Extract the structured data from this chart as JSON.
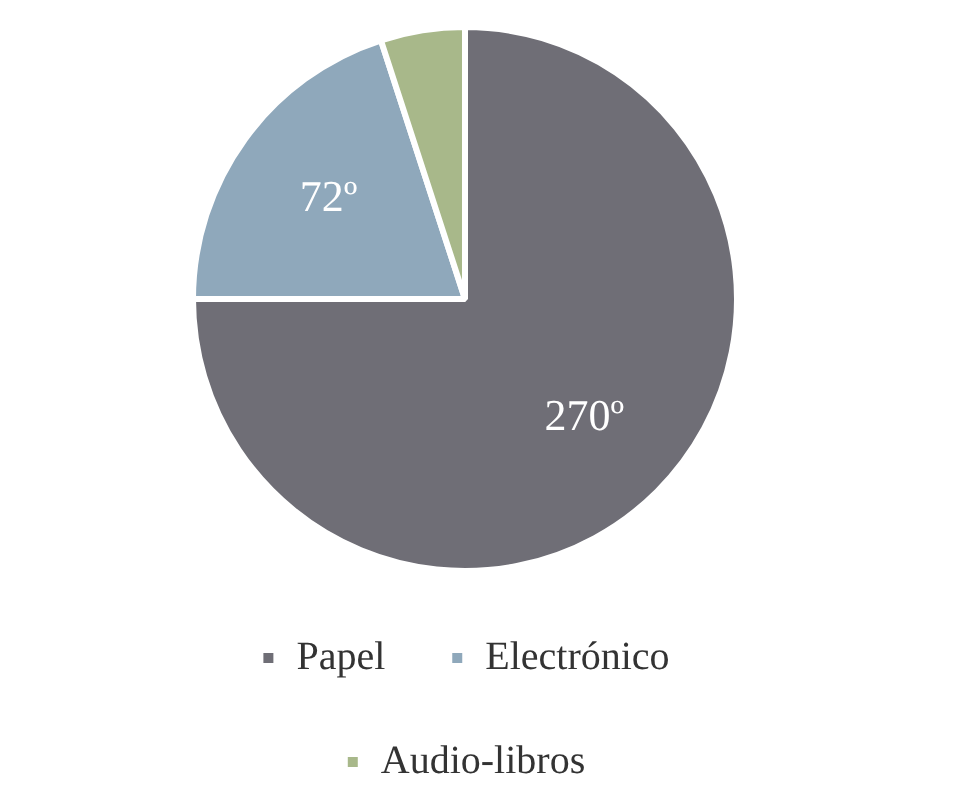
{
  "chart_data": {
    "type": "pie",
    "categories": [
      "Papel",
      "Electrónico",
      "Audio-libros"
    ],
    "values": [
      270,
      72,
      18
    ],
    "colors": [
      "#6f6e76",
      "#8fa8bb",
      "#a8b88a"
    ],
    "value_labels": [
      "270º",
      "72º",
      null
    ],
    "legend": "bottom"
  }
}
